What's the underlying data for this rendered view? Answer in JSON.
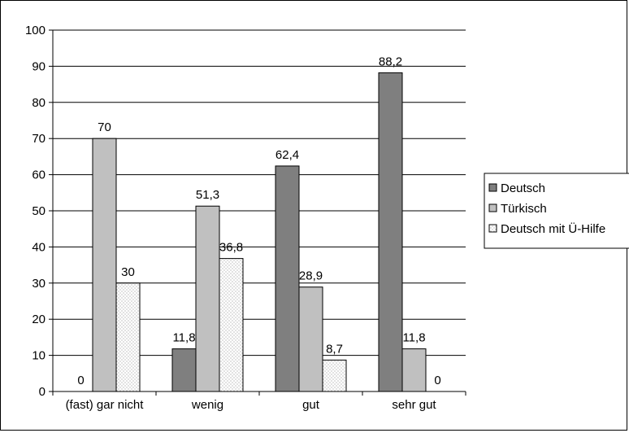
{
  "chart_data": {
    "type": "bar",
    "categories": [
      "(fast) gar nicht",
      "wenig",
      "gut",
      "sehr gut"
    ],
    "series": [
      {
        "name": "Deutsch",
        "values": [
          0,
          11.8,
          62.4,
          88.2
        ],
        "labels": [
          "0",
          "11,8",
          "62,4",
          "88,2"
        ],
        "color": "#7f7f7f",
        "pattern": "solid"
      },
      {
        "name": "Türkisch",
        "values": [
          70,
          51.3,
          28.9,
          11.8
        ],
        "labels": [
          "70",
          "51,3",
          "28,9",
          "11,8"
        ],
        "color": "#c0c0c0",
        "pattern": "solid"
      },
      {
        "name": "Deutsch mit Ü-Hilfe",
        "values": [
          30,
          36.8,
          8.7,
          0
        ],
        "labels": [
          "30",
          "36,8",
          "8,7",
          "0"
        ],
        "color": "#ffffff",
        "pattern": "dotted"
      }
    ],
    "y_ticks": [
      "0",
      "10",
      "20",
      "30",
      "40",
      "50",
      "60",
      "70",
      "80",
      "90",
      "100"
    ],
    "ylim": [
      0,
      100
    ],
    "grid": true,
    "legend_position": "right",
    "title": "",
    "xlabel": "",
    "ylabel": ""
  }
}
